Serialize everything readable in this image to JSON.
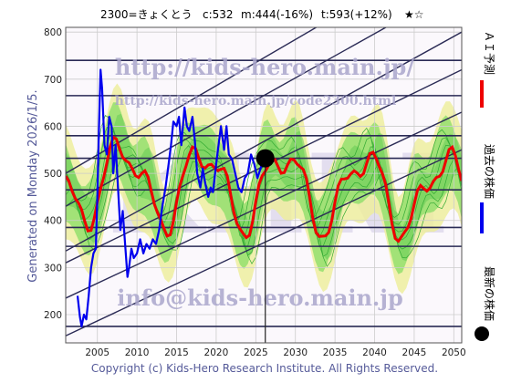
{
  "header": {
    "code_name": "2300=きょくとう",
    "current": "c:532",
    "middle": "m:444(-16%)",
    "target": "t:593(+12%)",
    "stars": "★☆"
  },
  "generated": "Generated on Monday 2026/1/5.",
  "watermarks": {
    "site": "http://kids-hero.main.jp/",
    "page": "http://kids-hero.main.jp/code2300.html",
    "mail": "info@kids-hero.main.jp"
  },
  "copyright": "Copyright (c) Kids-Hero Research Institute. All Rights Reserved.",
  "legend": {
    "forecast": "ＡＩ予測",
    "past": "過去の株価",
    "latest": "最新の株価"
  },
  "colors": {
    "forecast": "#ee0000",
    "past": "#0000ee",
    "latest": "#000000",
    "band_green": "#88dd66",
    "band_yellow": "#eeee99",
    "trend": "#2a2a55"
  },
  "chart_data": {
    "type": "line",
    "xlim": [
      2001,
      2051
    ],
    "ylim": [
      140,
      810
    ],
    "x_ticks": [
      2005,
      2010,
      2015,
      2020,
      2025,
      2030,
      2035,
      2040,
      2045,
      2050
    ],
    "y_ticks": [
      200,
      300,
      400,
      500,
      600,
      700,
      800
    ],
    "horizontal_levels": [
      740,
      665,
      580,
      532,
      465,
      385,
      345,
      175
    ],
    "latest_point": {
      "x": 2026.2,
      "y": 532
    },
    "trend_lines": [
      {
        "x": [
          2001,
          2051
        ],
        "y": [
          155,
          550
        ]
      },
      {
        "x": [
          2001,
          2051
        ],
        "y": [
          235,
          630
        ]
      },
      {
        "x": [
          2001,
          2051
        ],
        "y": [
          310,
          720
        ]
      },
      {
        "x": [
          2001,
          2051
        ],
        "y": [
          335,
          800
        ]
      },
      {
        "x": [
          2001,
          2051
        ],
        "y": [
          430,
          900
        ]
      },
      {
        "x": [
          2001,
          2051
        ],
        "y": [
          500,
          990
        ]
      }
    ],
    "series": [
      {
        "name": "最新の株価",
        "x": [
          2002.5,
          2002.8,
          2003.0,
          2003.3,
          2003.6,
          2003.9,
          2004.2,
          2004.5,
          2004.8,
          2005.0,
          2005.2,
          2005.4,
          2005.6,
          2005.9,
          2006.2,
          2006.5,
          2006.8,
          2007.0,
          2007.3,
          2007.6,
          2007.9,
          2008.2,
          2008.5,
          2008.8,
          2009.0,
          2009.3,
          2009.6,
          2010.0,
          2010.4,
          2010.8,
          2011.2,
          2011.6,
          2012.0,
          2012.4,
          2012.8,
          2013.2,
          2013.6,
          2014.0,
          2014.3,
          2014.6,
          2015.0,
          2015.3,
          2015.6,
          2016.0,
          2016.3,
          2016.6,
          2017.0,
          2017.3,
          2017.6,
          2018.0,
          2018.3,
          2018.6,
          2019.0,
          2019.3,
          2019.6,
          2020.0,
          2020.3,
          2020.6,
          2021.0,
          2021.3,
          2021.6,
          2022.0,
          2022.4,
          2022.8,
          2023.2,
          2023.6,
          2024.0,
          2024.4,
          2024.8,
          2025.2,
          2025.6,
          2026.0
        ],
        "y": [
          240,
          195,
          175,
          200,
          190,
          240,
          300,
          330,
          340,
          450,
          600,
          720,
          680,
          560,
          540,
          620,
          600,
          500,
          560,
          470,
          380,
          420,
          350,
          280,
          300,
          340,
          320,
          330,
          360,
          330,
          350,
          340,
          360,
          350,
          380,
          430,
          470,
          520,
          560,
          610,
          600,
          620,
          560,
          640,
          600,
          590,
          620,
          570,
          500,
          470,
          510,
          480,
          450,
          470,
          460,
          520,
          560,
          600,
          550,
          600,
          540,
          530,
          500,
          470,
          460,
          490,
          500,
          540,
          520,
          490,
          510,
          532
        ]
      }
    ]
  }
}
